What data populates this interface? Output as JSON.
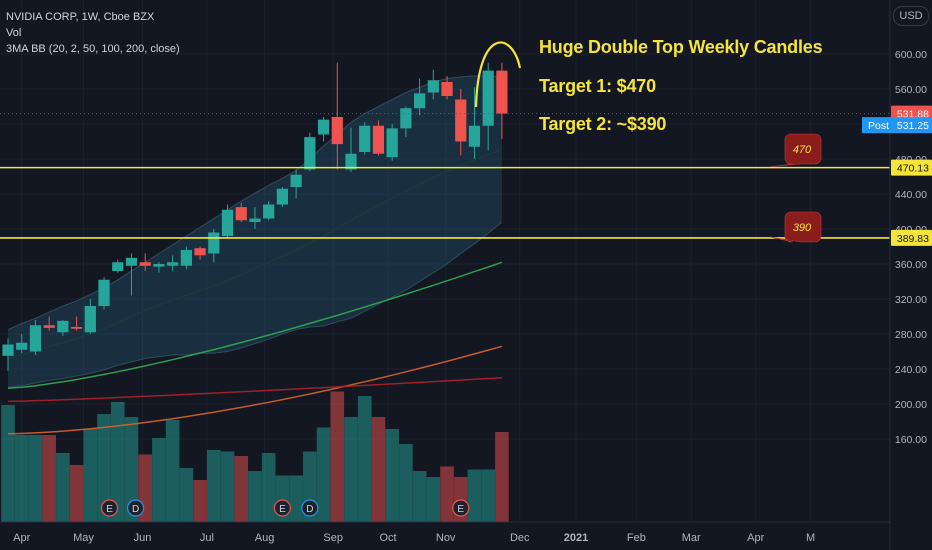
{
  "legend": {
    "symbol_line": "NVIDIA CORP, 1W, Cboe BZX",
    "vol_label": "Vol",
    "bb_label": "3MA BB (20, 2, 50, 100, 200, close)"
  },
  "currency_button": "USD",
  "annotations": {
    "headline": "Huge Double Top Weekly Candles",
    "target1": "Target 1: $470",
    "target2": "Target 2: ~$390",
    "callout1": "470",
    "callout2": "390"
  },
  "price_badges": {
    "last": "531.88",
    "post_label": "Post",
    "post_value": "531.25",
    "level1": "470.13",
    "level2": "389.83"
  },
  "colors": {
    "background": "#131722",
    "up": "#26a69a",
    "down": "#ef5350",
    "annotation": "#f5e53a",
    "callout": "#8b1c1c",
    "post_badge": "#2196f3",
    "band_fill": "#1f3a4a"
  },
  "chart_data": {
    "type": "candlestick",
    "title": "NVIDIA CORP, 1W, Cboe BZX",
    "ylabel": "USD",
    "ylim": [
      120,
      620
    ],
    "y_ticks": [
      160,
      200,
      240,
      280,
      320,
      360,
      400,
      440,
      480,
      520,
      560,
      600
    ],
    "y_tick_labels": [
      "160.00",
      "200.00",
      "240.00",
      "280.00",
      "320.00",
      "360.00",
      "400.00",
      "440.00",
      "480.00",
      "520.00",
      "560.00",
      "600.00"
    ],
    "x_ticks": [
      {
        "label": "Apr",
        "i": 1.0
      },
      {
        "label": "May",
        "i": 5.5
      },
      {
        "label": "Jun",
        "i": 9.8
      },
      {
        "label": "Jul",
        "i": 14.5
      },
      {
        "label": "Aug",
        "i": 18.7
      },
      {
        "label": "Sep",
        "i": 23.7
      },
      {
        "label": "Oct",
        "i": 27.7
      },
      {
        "label": "Nov",
        "i": 31.9
      },
      {
        "label": "Dec",
        "i": 37.3
      },
      {
        "label": "2021",
        "i": 41.4
      },
      {
        "label": "Feb",
        "i": 45.8
      },
      {
        "label": "Mar",
        "i": 49.8
      },
      {
        "label": "Apr",
        "i": 54.5
      },
      {
        "label": "M",
        "i": 58.5
      }
    ],
    "candles": [
      {
        "o": 255,
        "h": 275,
        "l": 238,
        "c": 268
      },
      {
        "o": 262,
        "h": 280,
        "l": 258,
        "c": 270
      },
      {
        "o": 260,
        "h": 296,
        "l": 256,
        "c": 290
      },
      {
        "o": 290,
        "h": 300,
        "l": 284,
        "c": 287
      },
      {
        "o": 282,
        "h": 296,
        "l": 278,
        "c": 295
      },
      {
        "o": 288,
        "h": 300,
        "l": 284,
        "c": 286
      },
      {
        "o": 282,
        "h": 320,
        "l": 280,
        "c": 312
      },
      {
        "o": 312,
        "h": 345,
        "l": 308,
        "c": 342
      },
      {
        "o": 352,
        "h": 365,
        "l": 350,
        "c": 362
      },
      {
        "o": 358,
        "h": 372,
        "l": 324,
        "c": 367
      },
      {
        "o": 362,
        "h": 372,
        "l": 352,
        "c": 358
      },
      {
        "o": 357,
        "h": 362,
        "l": 350,
        "c": 360
      },
      {
        "o": 358,
        "h": 370,
        "l": 352,
        "c": 362
      },
      {
        "o": 358,
        "h": 380,
        "l": 354,
        "c": 376
      },
      {
        "o": 378,
        "h": 380,
        "l": 365,
        "c": 370
      },
      {
        "o": 372,
        "h": 400,
        "l": 362,
        "c": 396
      },
      {
        "o": 392,
        "h": 428,
        "l": 390,
        "c": 422
      },
      {
        "o": 425,
        "h": 430,
        "l": 408,
        "c": 410
      },
      {
        "o": 408,
        "h": 425,
        "l": 400,
        "c": 412
      },
      {
        "o": 412,
        "h": 432,
        "l": 410,
        "c": 428
      },
      {
        "o": 428,
        "h": 448,
        "l": 425,
        "c": 446
      },
      {
        "o": 448,
        "h": 468,
        "l": 435,
        "c": 462
      },
      {
        "o": 468,
        "h": 510,
        "l": 466,
        "c": 505
      },
      {
        "o": 508,
        "h": 528,
        "l": 500,
        "c": 525
      },
      {
        "o": 528,
        "h": 590,
        "l": 468,
        "c": 497
      },
      {
        "o": 468,
        "h": 516,
        "l": 465,
        "c": 486
      },
      {
        "o": 488,
        "h": 522,
        "l": 485,
        "c": 518
      },
      {
        "o": 518,
        "h": 524,
        "l": 484,
        "c": 486
      },
      {
        "o": 482,
        "h": 520,
        "l": 478,
        "c": 515
      },
      {
        "o": 515,
        "h": 540,
        "l": 505,
        "c": 538
      },
      {
        "o": 538,
        "h": 572,
        "l": 530,
        "c": 555
      },
      {
        "o": 556,
        "h": 582,
        "l": 548,
        "c": 570
      },
      {
        "o": 568,
        "h": 575,
        "l": 548,
        "c": 552
      },
      {
        "o": 548,
        "h": 560,
        "l": 484,
        "c": 500
      },
      {
        "o": 494,
        "h": 562,
        "l": 480,
        "c": 518
      },
      {
        "o": 518,
        "h": 590,
        "l": 490,
        "c": 581
      },
      {
        "o": 581,
        "h": 590,
        "l": 503,
        "c": 532
      }
    ],
    "volume_levels": [
      0.78,
      0.58,
      0.58,
      0.58,
      0.46,
      0.38,
      0.62,
      0.72,
      0.8,
      0.7,
      0.45,
      0.56,
      0.68,
      0.36,
      0.28,
      0.48,
      0.47,
      0.44,
      0.34,
      0.46,
      0.31,
      0.31,
      0.47,
      0.63,
      0.87,
      0.7,
      0.84,
      0.7,
      0.62,
      0.52,
      0.34,
      0.3,
      0.37,
      0.3,
      0.35,
      0.35,
      0.6
    ],
    "levels": [
      {
        "name": "470",
        "value": 470.13
      },
      {
        "name": "390",
        "value": 389.83
      }
    ],
    "last_price": 531.88,
    "post_price": 531.25,
    "bands": {
      "basis": [
        252,
        256,
        261,
        266,
        270,
        275,
        280,
        286,
        293,
        300,
        307,
        313,
        319,
        324,
        330,
        335,
        341,
        348,
        355,
        362,
        369,
        376,
        384,
        392,
        401,
        410,
        419,
        427,
        435,
        443,
        451,
        459,
        466,
        473,
        479,
        485,
        491
      ],
      "upper": [
        285,
        292,
        298,
        305,
        312,
        318,
        325,
        333,
        342,
        352,
        362,
        372,
        382,
        392,
        402,
        412,
        422,
        432,
        441,
        450,
        458,
        467,
        480,
        495,
        508,
        522,
        532,
        540,
        548,
        556,
        562,
        568,
        572,
        574,
        575,
        575,
        574
      ],
      "lower": [
        219,
        221,
        224,
        227,
        229,
        232,
        235,
        239,
        244,
        248,
        252,
        254,
        256,
        256,
        258,
        258,
        260,
        264,
        269,
        274,
        280,
        285,
        288,
        289,
        294,
        298,
        306,
        314,
        322,
        330,
        340,
        350,
        360,
        372,
        383,
        395,
        408
      ]
    },
    "ma50": {
      "start": 218,
      "end": 362
    },
    "ma100_vol": {
      "start": 166,
      "end": 266
    },
    "ma200_vol": {
      "start": 203,
      "end": 230
    },
    "events": [
      {
        "label": "E",
        "i": 7.4
      },
      {
        "label": "D",
        "i": 9.3
      },
      {
        "label": "E",
        "i": 20.0
      },
      {
        "label": "D",
        "i": 22.0
      },
      {
        "label": "E",
        "i": 33.0
      }
    ]
  }
}
